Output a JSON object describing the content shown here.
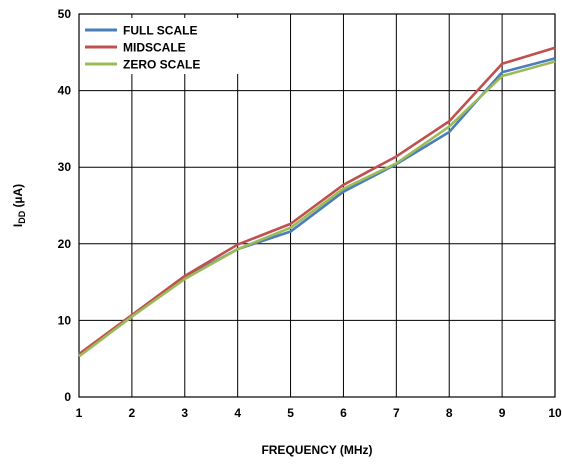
{
  "chart_data": {
    "type": "line",
    "title": "",
    "xlabel": "FREQUENCY (MHz)",
    "ylabel_main": "I",
    "ylabel_sub": "DD",
    "ylabel_unit": " (µA)",
    "xlim": [
      1,
      10
    ],
    "ylim": [
      0,
      50
    ],
    "x_ticks": [
      "1",
      "2",
      "3",
      "4",
      "5",
      "6",
      "7",
      "8",
      "9",
      "10"
    ],
    "y_ticks": [
      "0",
      "10",
      "20",
      "30",
      "40",
      "50"
    ],
    "grid": true,
    "legend_position": "top-left",
    "x": [
      1,
      2,
      3,
      4,
      5,
      6,
      7,
      8,
      9,
      10
    ],
    "series": [
      {
        "name": "FULL SCALE",
        "color": "#4a7ebb",
        "values": [
          5.4,
          10.5,
          15.6,
          19.3,
          21.6,
          26.8,
          30.4,
          34.6,
          42.4,
          44.2
        ]
      },
      {
        "name": "MIDSCALE",
        "color": "#c0504d",
        "values": [
          5.6,
          10.7,
          15.8,
          19.9,
          22.6,
          27.7,
          31.4,
          36.0,
          43.5,
          45.6
        ]
      },
      {
        "name": "ZERO SCALE",
        "color": "#9bbb59",
        "values": [
          5.3,
          10.5,
          15.4,
          19.3,
          22.1,
          27.2,
          30.5,
          35.3,
          41.9,
          43.8
        ]
      }
    ]
  }
}
